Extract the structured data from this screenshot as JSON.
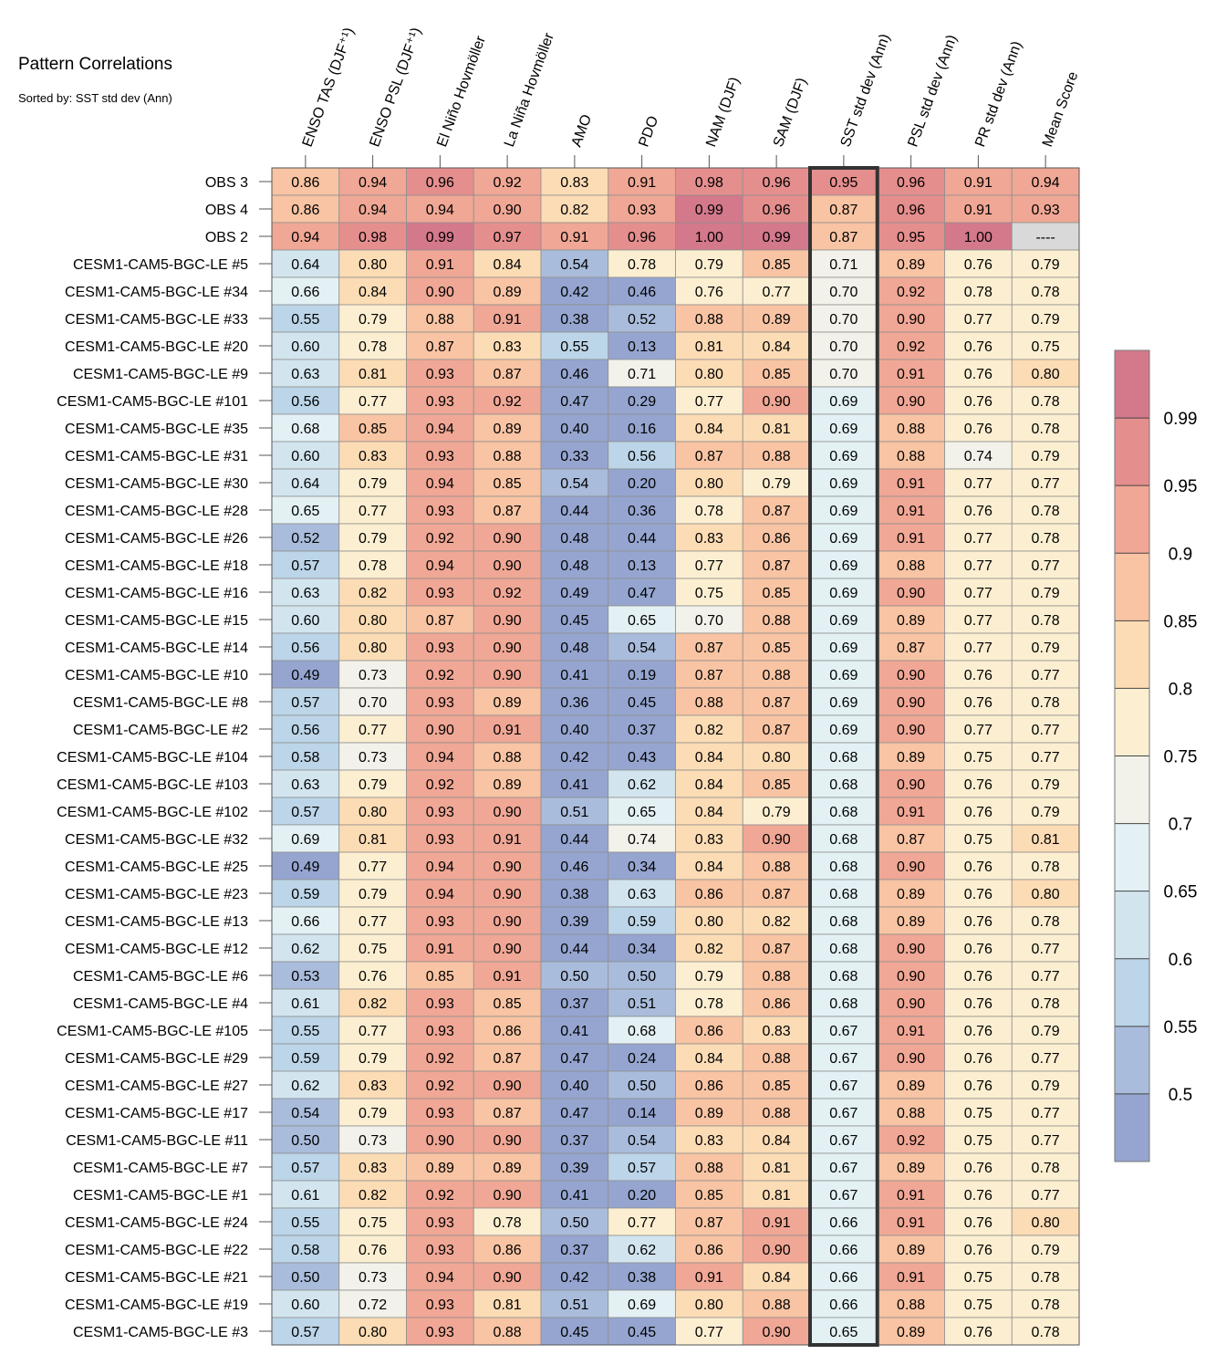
{
  "title": "Pattern Correlations",
  "subtitle": "Sorted by: SST std dev (Ann)",
  "chart_data": {
    "type": "heatmap",
    "title": "Pattern Correlations",
    "subtitle": "Sorted by: SST std dev (Ann)",
    "columns": [
      "ENSO TAS (DJF⁺¹)",
      "ENSO PSL (DJF⁺¹)",
      "El Niño Hovmöller",
      "La Niña Hovmöller",
      "AMO",
      "PDO",
      "NAM (DJF)",
      "SAM (DJF)",
      "SST std dev (Ann)",
      "PSL std dev (Ann)",
      "PR std dev (Ann)",
      "Mean Score"
    ],
    "highlighted_column": "SST std dev (Ann)",
    "rows": [
      {
        "label": "OBS 3",
        "values": [
          "0.86",
          "0.94",
          "0.96",
          "0.92",
          "0.83",
          "0.91",
          "0.98",
          "0.96",
          "0.95",
          "0.96",
          "0.91",
          "0.94"
        ]
      },
      {
        "label": "OBS 4",
        "values": [
          "0.86",
          "0.94",
          "0.94",
          "0.90",
          "0.82",
          "0.93",
          "0.99",
          "0.96",
          "0.87",
          "0.96",
          "0.91",
          "0.93"
        ]
      },
      {
        "label": "OBS 2",
        "values": [
          "0.94",
          "0.98",
          "0.99",
          "0.97",
          "0.91",
          "0.96",
          "1.00",
          "0.99",
          "0.87",
          "0.95",
          "1.00",
          "----"
        ]
      },
      {
        "label": "CESM1-CAM5-BGC-LE #5",
        "values": [
          "0.64",
          "0.80",
          "0.91",
          "0.84",
          "0.54",
          "0.78",
          "0.79",
          "0.85",
          "0.71",
          "0.89",
          "0.76",
          "0.79"
        ]
      },
      {
        "label": "CESM1-CAM5-BGC-LE #34",
        "values": [
          "0.66",
          "0.84",
          "0.90",
          "0.89",
          "0.42",
          "0.46",
          "0.76",
          "0.77",
          "0.70",
          "0.92",
          "0.78",
          "0.78"
        ]
      },
      {
        "label": "CESM1-CAM5-BGC-LE #33",
        "values": [
          "0.55",
          "0.79",
          "0.88",
          "0.91",
          "0.38",
          "0.52",
          "0.88",
          "0.89",
          "0.70",
          "0.90",
          "0.77",
          "0.79"
        ]
      },
      {
        "label": "CESM1-CAM5-BGC-LE #20",
        "values": [
          "0.60",
          "0.78",
          "0.87",
          "0.83",
          "0.55",
          "0.13",
          "0.81",
          "0.84",
          "0.70",
          "0.92",
          "0.76",
          "0.75"
        ]
      },
      {
        "label": "CESM1-CAM5-BGC-LE #9",
        "values": [
          "0.63",
          "0.81",
          "0.93",
          "0.87",
          "0.46",
          "0.71",
          "0.80",
          "0.85",
          "0.70",
          "0.91",
          "0.76",
          "0.80"
        ]
      },
      {
        "label": "CESM1-CAM5-BGC-LE #101",
        "values": [
          "0.56",
          "0.77",
          "0.93",
          "0.92",
          "0.47",
          "0.29",
          "0.77",
          "0.90",
          "0.69",
          "0.90",
          "0.76",
          "0.78"
        ]
      },
      {
        "label": "CESM1-CAM5-BGC-LE #35",
        "values": [
          "0.68",
          "0.85",
          "0.94",
          "0.89",
          "0.40",
          "0.16",
          "0.84",
          "0.81",
          "0.69",
          "0.88",
          "0.76",
          "0.78"
        ]
      },
      {
        "label": "CESM1-CAM5-BGC-LE #31",
        "values": [
          "0.60",
          "0.83",
          "0.93",
          "0.88",
          "0.33",
          "0.56",
          "0.87",
          "0.88",
          "0.69",
          "0.88",
          "0.74",
          "0.79"
        ]
      },
      {
        "label": "CESM1-CAM5-BGC-LE #30",
        "values": [
          "0.64",
          "0.79",
          "0.94",
          "0.85",
          "0.54",
          "0.20",
          "0.80",
          "0.79",
          "0.69",
          "0.91",
          "0.77",
          "0.77"
        ]
      },
      {
        "label": "CESM1-CAM5-BGC-LE #28",
        "values": [
          "0.65",
          "0.77",
          "0.93",
          "0.87",
          "0.44",
          "0.36",
          "0.78",
          "0.87",
          "0.69",
          "0.91",
          "0.76",
          "0.78"
        ]
      },
      {
        "label": "CESM1-CAM5-BGC-LE #26",
        "values": [
          "0.52",
          "0.79",
          "0.92",
          "0.90",
          "0.48",
          "0.44",
          "0.83",
          "0.86",
          "0.69",
          "0.91",
          "0.77",
          "0.78"
        ]
      },
      {
        "label": "CESM1-CAM5-BGC-LE #18",
        "values": [
          "0.57",
          "0.78",
          "0.94",
          "0.90",
          "0.48",
          "0.13",
          "0.77",
          "0.87",
          "0.69",
          "0.88",
          "0.77",
          "0.77"
        ]
      },
      {
        "label": "CESM1-CAM5-BGC-LE #16",
        "values": [
          "0.63",
          "0.82",
          "0.93",
          "0.92",
          "0.49",
          "0.47",
          "0.75",
          "0.85",
          "0.69",
          "0.90",
          "0.77",
          "0.79"
        ]
      },
      {
        "label": "CESM1-CAM5-BGC-LE #15",
        "values": [
          "0.60",
          "0.80",
          "0.87",
          "0.90",
          "0.45",
          "0.65",
          "0.70",
          "0.88",
          "0.69",
          "0.89",
          "0.77",
          "0.78"
        ]
      },
      {
        "label": "CESM1-CAM5-BGC-LE #14",
        "values": [
          "0.56",
          "0.80",
          "0.93",
          "0.90",
          "0.48",
          "0.54",
          "0.87",
          "0.85",
          "0.69",
          "0.87",
          "0.77",
          "0.79"
        ]
      },
      {
        "label": "CESM1-CAM5-BGC-LE #10",
        "values": [
          "0.49",
          "0.73",
          "0.92",
          "0.90",
          "0.41",
          "0.19",
          "0.87",
          "0.88",
          "0.69",
          "0.90",
          "0.76",
          "0.77"
        ]
      },
      {
        "label": "CESM1-CAM5-BGC-LE #8",
        "values": [
          "0.57",
          "0.70",
          "0.93",
          "0.89",
          "0.36",
          "0.45",
          "0.88",
          "0.87",
          "0.69",
          "0.90",
          "0.76",
          "0.78"
        ]
      },
      {
        "label": "CESM1-CAM5-BGC-LE #2",
        "values": [
          "0.56",
          "0.77",
          "0.90",
          "0.91",
          "0.40",
          "0.37",
          "0.82",
          "0.87",
          "0.69",
          "0.90",
          "0.77",
          "0.77"
        ]
      },
      {
        "label": "CESM1-CAM5-BGC-LE #104",
        "values": [
          "0.58",
          "0.73",
          "0.94",
          "0.88",
          "0.42",
          "0.43",
          "0.84",
          "0.80",
          "0.68",
          "0.89",
          "0.75",
          "0.77"
        ]
      },
      {
        "label": "CESM1-CAM5-BGC-LE #103",
        "values": [
          "0.63",
          "0.79",
          "0.92",
          "0.89",
          "0.41",
          "0.62",
          "0.84",
          "0.85",
          "0.68",
          "0.90",
          "0.76",
          "0.79"
        ]
      },
      {
        "label": "CESM1-CAM5-BGC-LE #102",
        "values": [
          "0.57",
          "0.80",
          "0.93",
          "0.90",
          "0.51",
          "0.65",
          "0.84",
          "0.79",
          "0.68",
          "0.91",
          "0.76",
          "0.79"
        ]
      },
      {
        "label": "CESM1-CAM5-BGC-LE #32",
        "values": [
          "0.69",
          "0.81",
          "0.93",
          "0.91",
          "0.44",
          "0.74",
          "0.83",
          "0.90",
          "0.68",
          "0.87",
          "0.75",
          "0.81"
        ]
      },
      {
        "label": "CESM1-CAM5-BGC-LE #25",
        "values": [
          "0.49",
          "0.77",
          "0.94",
          "0.90",
          "0.46",
          "0.34",
          "0.84",
          "0.88",
          "0.68",
          "0.90",
          "0.76",
          "0.78"
        ]
      },
      {
        "label": "CESM1-CAM5-BGC-LE #23",
        "values": [
          "0.59",
          "0.79",
          "0.94",
          "0.90",
          "0.38",
          "0.63",
          "0.86",
          "0.87",
          "0.68",
          "0.89",
          "0.76",
          "0.80"
        ]
      },
      {
        "label": "CESM1-CAM5-BGC-LE #13",
        "values": [
          "0.66",
          "0.77",
          "0.93",
          "0.90",
          "0.39",
          "0.59",
          "0.80",
          "0.82",
          "0.68",
          "0.89",
          "0.76",
          "0.78"
        ]
      },
      {
        "label": "CESM1-CAM5-BGC-LE #12",
        "values": [
          "0.62",
          "0.75",
          "0.91",
          "0.90",
          "0.44",
          "0.34",
          "0.82",
          "0.87",
          "0.68",
          "0.90",
          "0.76",
          "0.77"
        ]
      },
      {
        "label": "CESM1-CAM5-BGC-LE #6",
        "values": [
          "0.53",
          "0.76",
          "0.85",
          "0.91",
          "0.50",
          "0.50",
          "0.79",
          "0.88",
          "0.68",
          "0.90",
          "0.76",
          "0.77"
        ]
      },
      {
        "label": "CESM1-CAM5-BGC-LE #4",
        "values": [
          "0.61",
          "0.82",
          "0.93",
          "0.85",
          "0.37",
          "0.51",
          "0.78",
          "0.86",
          "0.68",
          "0.90",
          "0.76",
          "0.78"
        ]
      },
      {
        "label": "CESM1-CAM5-BGC-LE #105",
        "values": [
          "0.55",
          "0.77",
          "0.93",
          "0.86",
          "0.41",
          "0.68",
          "0.86",
          "0.83",
          "0.67",
          "0.91",
          "0.76",
          "0.79"
        ]
      },
      {
        "label": "CESM1-CAM5-BGC-LE #29",
        "values": [
          "0.59",
          "0.79",
          "0.92",
          "0.87",
          "0.47",
          "0.24",
          "0.84",
          "0.88",
          "0.67",
          "0.90",
          "0.76",
          "0.77"
        ]
      },
      {
        "label": "CESM1-CAM5-BGC-LE #27",
        "values": [
          "0.62",
          "0.83",
          "0.92",
          "0.90",
          "0.40",
          "0.50",
          "0.86",
          "0.85",
          "0.67",
          "0.89",
          "0.76",
          "0.79"
        ]
      },
      {
        "label": "CESM1-CAM5-BGC-LE #17",
        "values": [
          "0.54",
          "0.79",
          "0.93",
          "0.87",
          "0.47",
          "0.14",
          "0.89",
          "0.88",
          "0.67",
          "0.88",
          "0.75",
          "0.77"
        ]
      },
      {
        "label": "CESM1-CAM5-BGC-LE #11",
        "values": [
          "0.50",
          "0.73",
          "0.90",
          "0.90",
          "0.37",
          "0.54",
          "0.83",
          "0.84",
          "0.67",
          "0.92",
          "0.75",
          "0.77"
        ]
      },
      {
        "label": "CESM1-CAM5-BGC-LE #7",
        "values": [
          "0.57",
          "0.83",
          "0.89",
          "0.89",
          "0.39",
          "0.57",
          "0.88",
          "0.81",
          "0.67",
          "0.89",
          "0.76",
          "0.78"
        ]
      },
      {
        "label": "CESM1-CAM5-BGC-LE #1",
        "values": [
          "0.61",
          "0.82",
          "0.92",
          "0.90",
          "0.41",
          "0.20",
          "0.85",
          "0.81",
          "0.67",
          "0.91",
          "0.76",
          "0.77"
        ]
      },
      {
        "label": "CESM1-CAM5-BGC-LE #24",
        "values": [
          "0.55",
          "0.75",
          "0.93",
          "0.78",
          "0.50",
          "0.77",
          "0.87",
          "0.91",
          "0.66",
          "0.91",
          "0.76",
          "0.80"
        ]
      },
      {
        "label": "CESM1-CAM5-BGC-LE #22",
        "values": [
          "0.58",
          "0.76",
          "0.93",
          "0.86",
          "0.37",
          "0.62",
          "0.86",
          "0.90",
          "0.66",
          "0.89",
          "0.76",
          "0.79"
        ]
      },
      {
        "label": "CESM1-CAM5-BGC-LE #21",
        "values": [
          "0.50",
          "0.73",
          "0.94",
          "0.90",
          "0.42",
          "0.38",
          "0.91",
          "0.84",
          "0.66",
          "0.91",
          "0.75",
          "0.78"
        ]
      },
      {
        "label": "CESM1-CAM5-BGC-LE #19",
        "values": [
          "0.60",
          "0.72",
          "0.93",
          "0.81",
          "0.51",
          "0.69",
          "0.80",
          "0.88",
          "0.66",
          "0.88",
          "0.75",
          "0.78"
        ]
      },
      {
        "label": "CESM1-CAM5-BGC-LE #3",
        "values": [
          "0.57",
          "0.80",
          "0.93",
          "0.88",
          "0.45",
          "0.45",
          "0.77",
          "0.90",
          "0.65",
          "0.89",
          "0.76",
          "0.78"
        ]
      }
    ],
    "colorbar": {
      "ticks": [
        "0.5",
        "0.55",
        "0.6",
        "0.65",
        "0.7",
        "0.75",
        "0.8",
        "0.85",
        "0.9",
        "0.95",
        "0.99"
      ],
      "levels": [
        0.5,
        0.55,
        0.6,
        0.65,
        0.7,
        0.75,
        0.8,
        0.85,
        0.9,
        0.95,
        0.99
      ],
      "colors": [
        "#95a5d0",
        "#a9bcdb",
        "#bcd5e8",
        "#d2e5ef",
        "#e3f1f5",
        "#f2f2ea",
        "#fcefd1",
        "#fcdcb5",
        "#f8c4a3",
        "#f0a795",
        "#e58e8e",
        "#d4788b"
      ],
      "missing_color": "#d9d9d9"
    }
  }
}
